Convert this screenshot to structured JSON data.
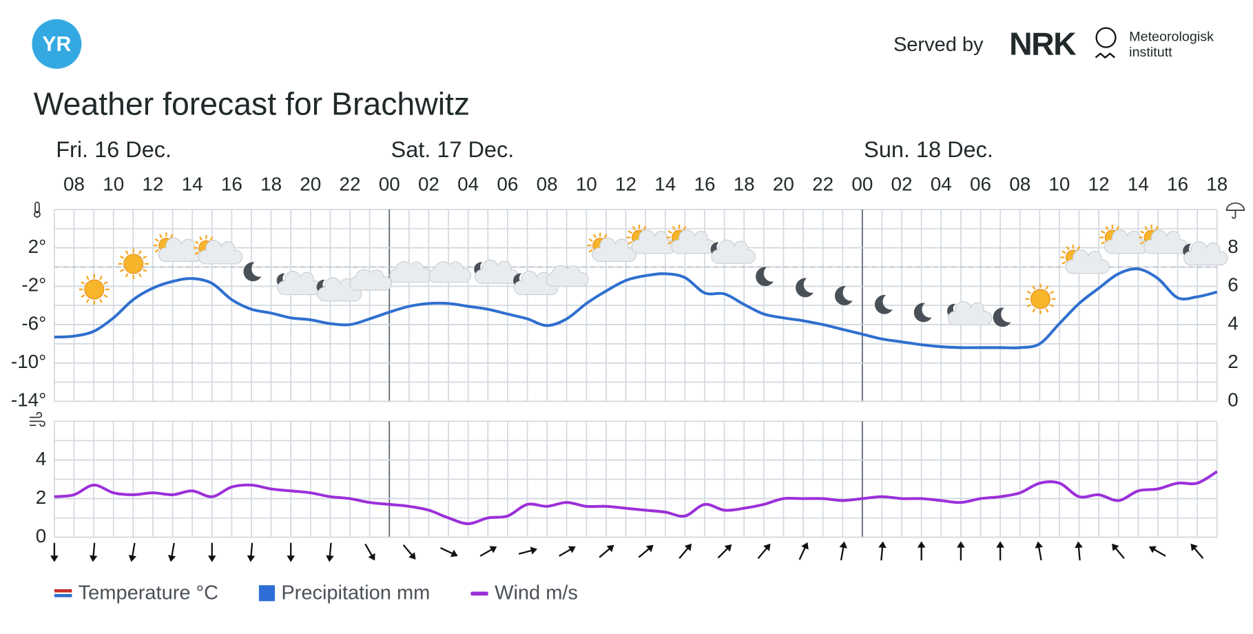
{
  "header": {
    "logo": "YR",
    "served_by": "Served by",
    "nrk": "NRK",
    "met": [
      "Meteorologisk",
      "institutt"
    ]
  },
  "chart_data": [
    {
      "type": "line",
      "title": "Weather forecast for Brachwitz",
      "days": [
        "Fri. 16 Dec.",
        "Sat. 17 Dec.",
        "Sun. 18 Dec."
      ],
      "categories": [
        null,
        "08",
        null,
        "10",
        null,
        "12",
        null,
        "14",
        null,
        "16",
        null,
        "18",
        null,
        "20",
        null,
        "22",
        null,
        "00",
        null,
        "02",
        null,
        "04",
        null,
        "06",
        null,
        "08",
        null,
        "10",
        null,
        "12",
        null,
        "14",
        null,
        "16",
        null,
        "18",
        null,
        "20",
        null,
        "22",
        null,
        "00",
        null,
        "02",
        null,
        "04",
        null,
        "06",
        null,
        "08",
        null,
        "10",
        null,
        "12",
        null,
        "14",
        null,
        "16",
        null,
        "18"
      ],
      "series": [
        {
          "name": "Temperature °C",
          "color": "#2f6fcf",
          "values": [
            -7.3,
            -7.2,
            -6.7,
            -5.3,
            -3.4,
            -2.2,
            -1.5,
            -1.2,
            -1.7,
            -3.4,
            -4.4,
            -4.8,
            -5.3,
            -5.5,
            -5.9,
            -6,
            -5.4,
            -4.7,
            -4.1,
            -3.8,
            -3.8,
            -4.1,
            -4.4,
            -4.9,
            -5.4,
            -6.1,
            -5.4,
            -3.8,
            -2.5,
            -1.4,
            -0.9,
            -0.7,
            -1.1,
            -2.7,
            -2.8,
            -3.9,
            -4.9,
            -5.3,
            -5.6,
            -6,
            -6.5,
            -7,
            -7.5,
            -7.8,
            -8.1,
            -8.3,
            -8.4,
            -8.4,
            -8.4,
            -8.4,
            -8,
            -5.9,
            -3.8,
            -2.2,
            -0.7,
            -0.2,
            -1.2,
            -3.2,
            -3.1,
            -2.6
          ]
        },
        {
          "name": "Precipitation mm",
          "color": "#2d6fd6",
          "axis": "y2",
          "values": [
            0,
            0,
            0,
            0,
            0,
            0,
            0,
            0,
            0,
            0,
            0,
            0,
            0,
            0,
            0,
            0,
            0,
            0,
            0,
            0,
            0,
            0,
            0,
            0,
            0,
            0,
            0,
            0,
            0,
            0,
            0,
            0,
            0,
            0,
            0,
            0,
            0,
            0,
            0,
            0,
            0,
            0,
            0,
            0,
            0,
            0,
            0,
            0,
            0,
            0,
            0,
            0,
            0,
            0,
            0,
            0,
            0,
            0,
            0,
            0
          ]
        }
      ],
      "ylim": [
        -14,
        6
      ],
      "yticks": [
        {
          "value": -14,
          "label": "-14°"
        },
        {
          "value": -10,
          "label": "-10°"
        },
        {
          "value": -6,
          "label": "-6°"
        },
        {
          "value": -2,
          "label": "-2°"
        },
        {
          "value": 2,
          "label": "2°"
        }
      ],
      "y2lim": [
        0,
        10
      ],
      "y2ticks": [
        0,
        2,
        4,
        6,
        8
      ],
      "grid": true
    },
    {
      "type": "line",
      "series": [
        {
          "name": "Wind m/s",
          "color": "#9b30d9",
          "values": [
            2.1,
            2.2,
            2.7,
            2.3,
            2.2,
            2.3,
            2.2,
            2.4,
            2.1,
            2.6,
            2.7,
            2.5,
            2.4,
            2.3,
            2.1,
            2,
            1.8,
            1.7,
            1.6,
            1.4,
            1,
            0.7,
            1,
            1.1,
            1.7,
            1.6,
            1.8,
            1.6,
            1.6,
            1.5,
            1.4,
            1.3,
            1.1,
            1.7,
            1.4,
            1.5,
            1.7,
            2,
            2,
            2,
            1.9,
            2,
            2.1,
            2,
            2,
            1.9,
            1.8,
            2,
            2.1,
            2.3,
            2.8,
            2.8,
            2.1,
            2.2,
            1.9,
            2.4,
            2.5,
            2.8,
            2.8,
            3.4
          ]
        }
      ],
      "wind_direction": [
        180,
        null,
        185,
        null,
        190,
        null,
        190,
        null,
        180,
        null,
        185,
        null,
        180,
        null,
        185,
        null,
        150,
        null,
        140,
        null,
        115,
        null,
        60,
        null,
        75,
        null,
        60,
        null,
        50,
        null,
        50,
        null,
        40,
        null,
        45,
        null,
        40,
        null,
        25,
        null,
        10,
        null,
        5,
        null,
        0,
        null,
        0,
        null,
        0,
        null,
        -10,
        null,
        -5,
        null,
        -40,
        null,
        -60,
        null,
        -40,
        null
      ],
      "ylim": [
        0,
        6
      ],
      "yticks": [
        0,
        2,
        4
      ],
      "grid": true
    }
  ]
}
